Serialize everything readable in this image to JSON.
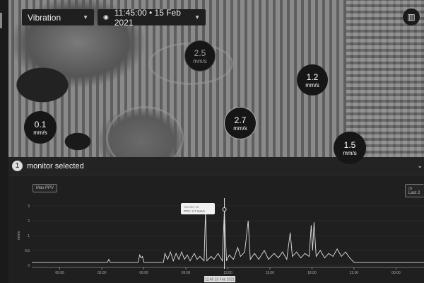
{
  "toolbar": {
    "metric": "Vibration",
    "datetime": "11:45:00 • 15 Feb 2021"
  },
  "map": {
    "bubbles": [
      {
        "value": "2.5",
        "unit": "mm/s",
        "dim": true
      },
      {
        "value": "1.2",
        "unit": "mm/s",
        "dim": false
      },
      {
        "value": "0.1",
        "unit": "mm/s",
        "dim": false
      },
      {
        "value": "2.7",
        "unit": "mm/s",
        "dim": false
      },
      {
        "value": "1.5",
        "unit": "mm/s",
        "dim": false
      }
    ]
  },
  "panel": {
    "count": "1",
    "title": "monitor selected",
    "metric_button": "Max PPV",
    "range_button": "Last 2"
  },
  "chart_data": {
    "type": "line",
    "ylabel": "mm/s",
    "yticks": [
      "0",
      "0.5",
      "1",
      "2",
      "3"
    ],
    "xticks": [
      "00:00",
      "03:00",
      "06:00",
      "09:00",
      "12:00",
      "15:00",
      "18:00",
      "21:00",
      "00:00"
    ],
    "xtick_hours": [
      0,
      3,
      6,
      9,
      12,
      15,
      18,
      21,
      24
    ],
    "xlim_hours": [
      -2,
      26
    ],
    "grid": true,
    "points": [
      [
        -2,
        0.1
      ],
      [
        3.4,
        0.1
      ],
      [
        3.5,
        0.2
      ],
      [
        3.6,
        0.1
      ],
      [
        5.6,
        0.1
      ],
      [
        5.7,
        0.35
      ],
      [
        5.8,
        0.25
      ],
      [
        5.9,
        0.3
      ],
      [
        6,
        0.1
      ],
      [
        7.4,
        0.1
      ],
      [
        7.5,
        0.4
      ],
      [
        7.7,
        0.2
      ],
      [
        7.9,
        0.45
      ],
      [
        8.1,
        0.15
      ],
      [
        8.3,
        0.4
      ],
      [
        8.5,
        0.2
      ],
      [
        8.7,
        0.45
      ],
      [
        8.9,
        0.2
      ],
      [
        9.1,
        0.35
      ],
      [
        9.3,
        0.15
      ],
      [
        9.6,
        0.4
      ],
      [
        9.8,
        0.2
      ],
      [
        10,
        0.3
      ],
      [
        10.3,
        0.15
      ],
      [
        10.4,
        2.6
      ],
      [
        10.5,
        0.15
      ],
      [
        10.8,
        0.3
      ],
      [
        11,
        0.2
      ],
      [
        11.3,
        0.4
      ],
      [
        11.6,
        0.15
      ],
      [
        11.75,
        2.7
      ],
      [
        11.9,
        0.15
      ],
      [
        12.1,
        0.35
      ],
      [
        12.4,
        0.2
      ],
      [
        12.7,
        0.6
      ],
      [
        12.9,
        0.3
      ],
      [
        13.2,
        0.45
      ],
      [
        13.45,
        2.0
      ],
      [
        13.6,
        0.2
      ],
      [
        13.9,
        0.4
      ],
      [
        14.2,
        0.2
      ],
      [
        14.6,
        0.5
      ],
      [
        14.9,
        0.2
      ],
      [
        15.3,
        0.4
      ],
      [
        15.6,
        0.25
      ],
      [
        15.9,
        0.45
      ],
      [
        16.2,
        0.2
      ],
      [
        16.45,
        1.2
      ],
      [
        16.6,
        0.3
      ],
      [
        16.9,
        0.45
      ],
      [
        17.2,
        0.25
      ],
      [
        17.5,
        0.4
      ],
      [
        17.8,
        0.3
      ],
      [
        17.95,
        1.7
      ],
      [
        18.05,
        0.5
      ],
      [
        18.15,
        1.9
      ],
      [
        18.3,
        0.3
      ],
      [
        18.6,
        0.5
      ],
      [
        18.9,
        0.25
      ],
      [
        19.2,
        0.4
      ],
      [
        19.5,
        0.3
      ],
      [
        19.8,
        0.55
      ],
      [
        20.1,
        0.3
      ],
      [
        20.4,
        0.45
      ],
      [
        20.7,
        0.25
      ],
      [
        21,
        0.1
      ],
      [
        26,
        0.1
      ]
    ],
    "tooltip": {
      "monitor": "Monitor 12",
      "value": "PPV: 2.7 mm/s"
    },
    "cursor_label": "11:45 15 Feb 2021",
    "cursor_hour": 11.75
  }
}
